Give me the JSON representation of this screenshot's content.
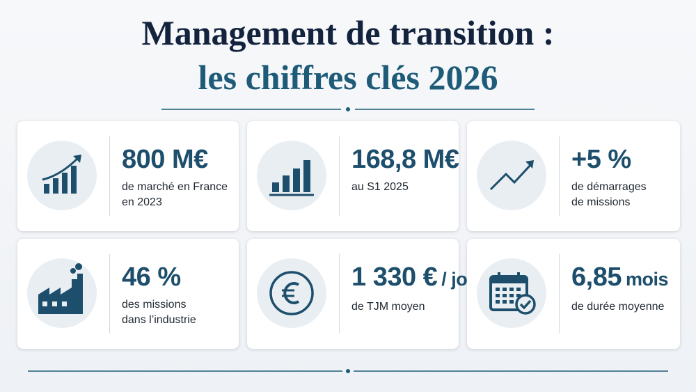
{
  "header": {
    "title_line1": "Management de transition :",
    "title_line2": "les chiffres clés 2026"
  },
  "cards": [
    {
      "value": "800 M€",
      "description": [
        "de marché en France",
        "en 2023"
      ]
    },
    {
      "value": "168,8 M€",
      "description": [
        "au S1 2025"
      ]
    },
    {
      "value": "+5 %",
      "description": [
        "de démarrages",
        "de missions"
      ]
    },
    {
      "value": "46 %",
      "description": [
        "des missions",
        "dans l’industrie"
      ]
    },
    {
      "value": "1 330 €",
      "unit": "/ jour",
      "description": [
        "de TJM moyen"
      ]
    },
    {
      "value": "6,85",
      "unit": "mois",
      "description": [
        "de durée moyenne"
      ]
    }
  ]
}
